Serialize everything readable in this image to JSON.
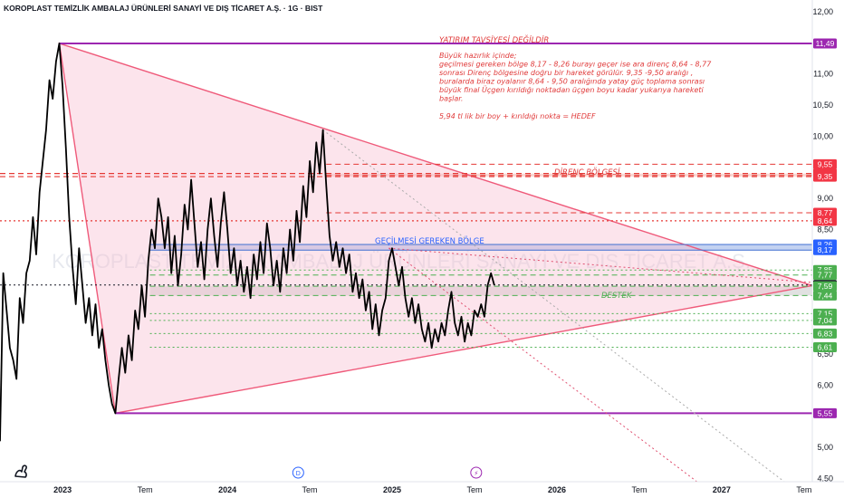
{
  "header": {
    "title": "KOROPLAST TEMİZLİK AMBALAJ ÜRÜNLERİ SANAYİ VE DIŞ TİCARET A.Ş. · 1G · BIST"
  },
  "watermark": "KOROPLAST TEMİZLİK AMBALAJ ÜRÜNLERİ SANAYİ VE DIŞ TİCARET A.Ş.",
  "annotations": {
    "disclaimer": "YATIRIM TAVSİYESİ DEĞİLDİR",
    "body_lines": [
      "Büyük hazırlık içinde;",
      "geçilmesi gereken bölge 8,17 - 8,26 burayı geçer ise ara direnç  8,64 - 8,77",
      "sonrası Direnç bölgesine doğru bir hareket görülür. 9,35 -9,50 aralığı ,",
      " buralarda biraz oyalanır 8,64 - 9,50 aralığında yatay güç toplama sonrası",
      "büyük final Üçgen kırıldığı noktadan üçgen boyu kadar yukarıya hareketi",
      "başlar."
    ],
    "target_line": "5,94 tl lik bir boy  + kırıldığı nokta = HEDEF",
    "resistance_zone": "DİRENÇ BÖLGESİ",
    "breakout_zone": "GEÇİLMESİ GEREKEN BÖLGE",
    "support_zone": "DESTEK"
  },
  "axis_badges": {
    "d": "D",
    "bolt": "⚡"
  },
  "chart_data": {
    "type": "line",
    "title": "KOROPLAST TEMİZLİK AMBALAJ ÜRÜNLERİ SANAYİ VE DIŞ TİCARET A.Ş. · 1G · BIST",
    "y_axis": {
      "min": 4.45,
      "max": 12.1,
      "ticks": [
        {
          "v": 12.0,
          "label": "12,00"
        },
        {
          "v": 11.0,
          "label": "11,00"
        },
        {
          "v": 10.5,
          "label": "10,50"
        },
        {
          "v": 10.0,
          "label": "10,00"
        },
        {
          "v": 9.0,
          "label": "9,00"
        },
        {
          "v": 8.5,
          "label": "8,50"
        },
        {
          "v": 6.5,
          "label": "6,50"
        },
        {
          "v": 6.0,
          "label": "6,00"
        },
        {
          "v": 5.0,
          "label": "5,00"
        },
        {
          "v": 4.5,
          "label": "4,50"
        }
      ]
    },
    "x_axis": {
      "min": 2022.62,
      "max": 2027.55,
      "ticks": [
        {
          "v": 2023.0,
          "label": "2023",
          "bold": true
        },
        {
          "v": 2023.5,
          "label": "Tem",
          "bold": false
        },
        {
          "v": 2024.0,
          "label": "2024",
          "bold": true
        },
        {
          "v": 2024.5,
          "label": "Tem",
          "bold": false
        },
        {
          "v": 2025.0,
          "label": "2025",
          "bold": true
        },
        {
          "v": 2025.5,
          "label": "Tem",
          "bold": false
        },
        {
          "v": 2026.0,
          "label": "2026",
          "bold": true
        },
        {
          "v": 2026.5,
          "label": "Tem",
          "bold": false
        },
        {
          "v": 2027.0,
          "label": "2027",
          "bold": true
        },
        {
          "v": 2027.5,
          "label": "Tem",
          "bold": false
        }
      ]
    },
    "badge_positions": {
      "d": 2024.43,
      "bolt": 2025.51
    },
    "series": [
      {
        "color": "#000000",
        "points": [
          [
            2022.62,
            5.1
          ],
          [
            2022.64,
            7.8
          ],
          [
            2022.66,
            7.2
          ],
          [
            2022.68,
            6.6
          ],
          [
            2022.7,
            6.4
          ],
          [
            2022.72,
            6.1
          ],
          [
            2022.74,
            7.4
          ],
          [
            2022.76,
            7.0
          ],
          [
            2022.78,
            7.8
          ],
          [
            2022.8,
            8.0
          ],
          [
            2022.82,
            8.7
          ],
          [
            2022.84,
            8.1
          ],
          [
            2022.86,
            9.1
          ],
          [
            2022.88,
            9.6
          ],
          [
            2022.9,
            10.1
          ],
          [
            2022.92,
            10.9
          ],
          [
            2022.94,
            10.6
          ],
          [
            2022.96,
            11.2
          ],
          [
            2022.98,
            11.49
          ],
          [
            2023.0,
            10.8
          ],
          [
            2023.02,
            9.8
          ],
          [
            2023.04,
            8.7
          ],
          [
            2023.06,
            7.9
          ],
          [
            2023.08,
            7.3
          ],
          [
            2023.1,
            8.2
          ],
          [
            2023.12,
            7.6
          ],
          [
            2023.14,
            7.0
          ],
          [
            2023.16,
            7.4
          ],
          [
            2023.18,
            6.8
          ],
          [
            2023.2,
            7.3
          ],
          [
            2023.22,
            6.6
          ],
          [
            2023.24,
            6.9
          ],
          [
            2023.26,
            6.4
          ],
          [
            2023.28,
            6.0
          ],
          [
            2023.3,
            5.7
          ],
          [
            2023.32,
            5.55
          ],
          [
            2023.34,
            6.1
          ],
          [
            2023.36,
            6.6
          ],
          [
            2023.38,
            6.2
          ],
          [
            2023.4,
            6.8
          ],
          [
            2023.42,
            6.4
          ],
          [
            2023.44,
            7.2
          ],
          [
            2023.46,
            6.9
          ],
          [
            2023.48,
            7.6
          ],
          [
            2023.5,
            7.1
          ],
          [
            2023.52,
            8.0
          ],
          [
            2023.54,
            8.5
          ],
          [
            2023.56,
            8.2
          ],
          [
            2023.58,
            9.0
          ],
          [
            2023.6,
            8.7
          ],
          [
            2023.62,
            8.2
          ],
          [
            2023.64,
            8.7
          ],
          [
            2023.66,
            7.8
          ],
          [
            2023.68,
            8.4
          ],
          [
            2023.7,
            7.6
          ],
          [
            2023.72,
            8.1
          ],
          [
            2023.74,
            8.9
          ],
          [
            2023.76,
            8.5
          ],
          [
            2023.78,
            9.3
          ],
          [
            2023.8,
            8.6
          ],
          [
            2023.82,
            7.9
          ],
          [
            2023.84,
            8.3
          ],
          [
            2023.86,
            7.7
          ],
          [
            2023.88,
            8.5
          ],
          [
            2023.9,
            9.0
          ],
          [
            2023.92,
            8.4
          ],
          [
            2023.94,
            7.9
          ],
          [
            2023.96,
            8.6
          ],
          [
            2023.98,
            9.1
          ],
          [
            2024.0,
            8.5
          ],
          [
            2024.02,
            7.8
          ],
          [
            2024.04,
            8.2
          ],
          [
            2024.06,
            7.6
          ],
          [
            2024.08,
            8.0
          ],
          [
            2024.1,
            7.5
          ],
          [
            2024.12,
            7.9
          ],
          [
            2024.14,
            7.4
          ],
          [
            2024.16,
            8.1
          ],
          [
            2024.18,
            7.7
          ],
          [
            2024.2,
            8.3
          ],
          [
            2024.22,
            7.8
          ],
          [
            2024.24,
            8.6
          ],
          [
            2024.26,
            8.2
          ],
          [
            2024.28,
            7.6
          ],
          [
            2024.3,
            8.0
          ],
          [
            2024.32,
            7.5
          ],
          [
            2024.34,
            8.2
          ],
          [
            2024.36,
            7.8
          ],
          [
            2024.38,
            8.5
          ],
          [
            2024.4,
            8.0
          ],
          [
            2024.42,
            8.8
          ],
          [
            2024.44,
            8.3
          ],
          [
            2024.46,
            9.2
          ],
          [
            2024.48,
            8.7
          ],
          [
            2024.5,
            9.6
          ],
          [
            2024.52,
            9.1
          ],
          [
            2024.54,
            9.9
          ],
          [
            2024.56,
            9.4
          ],
          [
            2024.58,
            10.1
          ],
          [
            2024.6,
            9.2
          ],
          [
            2024.62,
            8.4
          ],
          [
            2024.64,
            8.0
          ],
          [
            2024.66,
            8.3
          ],
          [
            2024.68,
            7.9
          ],
          [
            2024.7,
            8.2
          ],
          [
            2024.72,
            7.8
          ],
          [
            2024.74,
            8.1
          ],
          [
            2024.76,
            7.5
          ],
          [
            2024.78,
            7.8
          ],
          [
            2024.8,
            7.4
          ],
          [
            2024.82,
            7.7
          ],
          [
            2024.84,
            7.2
          ],
          [
            2024.86,
            7.5
          ],
          [
            2024.88,
            6.9
          ],
          [
            2024.9,
            7.3
          ],
          [
            2024.92,
            6.8
          ],
          [
            2024.94,
            7.2
          ],
          [
            2024.96,
            7.4
          ],
          [
            2024.98,
            8.0
          ],
          [
            2025.0,
            8.2
          ],
          [
            2025.02,
            7.9
          ],
          [
            2025.04,
            7.6
          ],
          [
            2025.06,
            7.9
          ],
          [
            2025.08,
            7.4
          ],
          [
            2025.1,
            7.1
          ],
          [
            2025.12,
            7.4
          ],
          [
            2025.14,
            7.0
          ],
          [
            2025.16,
            7.3
          ],
          [
            2025.18,
            6.9
          ],
          [
            2025.2,
            6.7
          ],
          [
            2025.22,
            7.0
          ],
          [
            2025.24,
            6.6
          ],
          [
            2025.26,
            6.9
          ],
          [
            2025.28,
            6.7
          ],
          [
            2025.3,
            7.0
          ],
          [
            2025.32,
            6.8
          ],
          [
            2025.34,
            7.2
          ],
          [
            2025.36,
            7.5
          ],
          [
            2025.38,
            7.0
          ],
          [
            2025.4,
            6.8
          ],
          [
            2025.42,
            7.1
          ],
          [
            2025.44,
            6.7
          ],
          [
            2025.46,
            7.0
          ],
          [
            2025.48,
            6.8
          ],
          [
            2025.5,
            7.2
          ],
          [
            2025.52,
            7.1
          ],
          [
            2025.54,
            7.3
          ],
          [
            2025.56,
            7.1
          ],
          [
            2025.58,
            7.61
          ],
          [
            2025.6,
            7.8
          ],
          [
            2025.62,
            7.61
          ]
        ]
      }
    ],
    "horizontal_lines": [
      {
        "y": 11.49,
        "color": "#9c27b0",
        "style": "solid",
        "width": 2,
        "from": 2022.98
      },
      {
        "y": 5.55,
        "color": "#9c27b0",
        "style": "solid",
        "width": 2,
        "from": 2023.32
      },
      {
        "y": 9.4,
        "color": "#e53935",
        "style": "dashed",
        "width": 1.2,
        "from": 2022.62
      },
      {
        "y": 9.35,
        "color": "#e53935",
        "style": "dashed",
        "width": 1.2,
        "from": 2022.62
      },
      {
        "y": 9.37,
        "color": "#e53935",
        "style": "dashed",
        "width": 1,
        "from": 2024.6
      },
      {
        "y": 9.55,
        "color": "#e53935",
        "style": "dashed",
        "width": 1,
        "from": 2024.6
      },
      {
        "y": 8.77,
        "color": "#e53935",
        "style": "dashed",
        "width": 1,
        "from": 2024.6
      },
      {
        "y": 8.64,
        "color": "#e53935",
        "style": "dotted",
        "width": 1.2,
        "from": 2022.62
      },
      {
        "y": 8.26,
        "color": "#3f6fd1",
        "style": "solid",
        "width": 1,
        "from": 2023.53
      },
      {
        "y": 8.17,
        "color": "#3f6fd1",
        "style": "solid",
        "width": 1,
        "from": 2023.53
      },
      {
        "y": 7.85,
        "color": "#4caf50",
        "style": "dotted",
        "width": 1,
        "from": 2023.53
      },
      {
        "y": 7.77,
        "color": "#4caf50",
        "style": "dashed",
        "width": 1,
        "from": 2023.53
      },
      {
        "y": 7.59,
        "color": "#4caf50",
        "style": "dashed",
        "width": 1,
        "from": 2023.53
      },
      {
        "y": 7.44,
        "color": "#4caf50",
        "style": "dashed",
        "width": 1,
        "from": 2023.53
      },
      {
        "y": 7.15,
        "color": "#4caf50",
        "style": "dotted",
        "width": 1,
        "from": 2023.53
      },
      {
        "y": 7.04,
        "color": "#4caf50",
        "style": "dotted",
        "width": 1,
        "from": 2023.53
      },
      {
        "y": 6.83,
        "color": "#4caf50",
        "style": "dotted",
        "width": 1,
        "from": 2023.53
      },
      {
        "y": 6.61,
        "color": "#4caf50",
        "style": "dotted",
        "width": 1,
        "from": 2023.53
      },
      {
        "y": 7.61,
        "color": "#131722",
        "style": "dotted",
        "width": 1,
        "from": 2022.62
      }
    ],
    "zones": [
      {
        "y1": 9.35,
        "y2": 9.4,
        "x1": 2024.6,
        "color": "#f28b82",
        "opacity": 0.35
      },
      {
        "y1": 8.17,
        "y2": 8.26,
        "x1": 2023.53,
        "color": "#7b9ce0",
        "opacity": 0.45
      },
      {
        "y1": 7.44,
        "y2": 7.59,
        "x1": 2023.53,
        "color": "#c9c9c9",
        "opacity": 0.55
      }
    ],
    "triangle": {
      "points": [
        [
          2022.98,
          11.49
        ],
        [
          2027.55,
          7.6
        ],
        [
          2023.32,
          5.55
        ]
      ],
      "fill": "#f8bbd0",
      "fill_opacity": 0.4,
      "stroke": "#ef5a7a"
    },
    "trend_lines": [
      {
        "p1": [
          2024.58,
          10.1
        ],
        "p2": [
          2027.38,
          4.45
        ],
        "color": "#aaaaaa",
        "style": "dotted"
      },
      {
        "p1": [
          2024.98,
          8.2
        ],
        "p2": [
          2026.85,
          4.45
        ],
        "color": "#e05070",
        "style": "dotted"
      },
      {
        "p1": [
          2024.98,
          8.2
        ],
        "p2": [
          2027.55,
          7.65
        ],
        "color": "#e05070",
        "style": "dotted"
      }
    ],
    "price_labels": [
      {
        "v": 11.49,
        "label": "11,49",
        "color": "#9c27b0"
      },
      {
        "v": 9.55,
        "label": "9,55",
        "color": "#f23645"
      },
      {
        "v": 9.4,
        "label": "9,40",
        "color": "#f23645"
      },
      {
        "v": 9.37,
        "label": "9,37",
        "color": "#f23645"
      },
      {
        "v": 9.35,
        "label": "9,35",
        "color": "#f23645"
      },
      {
        "v": 8.77,
        "label": "8,77",
        "color": "#f23645"
      },
      {
        "v": 8.64,
        "label": "8,64",
        "color": "#f23645"
      },
      {
        "v": 8.26,
        "label": "8,26",
        "color": "#2962ff"
      },
      {
        "v": 8.17,
        "label": "8,17",
        "color": "#2962ff"
      },
      {
        "v": 7.85,
        "label": "7,85",
        "color": "#4caf50"
      },
      {
        "v": 7.77,
        "label": "7,77",
        "color": "#4caf50"
      },
      {
        "v": 7.61,
        "label": "7,61",
        "color": "#131722"
      },
      {
        "v": 7.59,
        "label": "7,59",
        "color": "#4caf50"
      },
      {
        "v": 7.44,
        "label": "7,44",
        "color": "#4caf50"
      },
      {
        "v": 7.15,
        "label": "7,15",
        "color": "#4caf50"
      },
      {
        "v": 7.04,
        "label": "7,04",
        "color": "#4caf50"
      },
      {
        "v": 6.83,
        "label": "6,83",
        "color": "#4caf50"
      },
      {
        "v": 6.61,
        "label": "6,61",
        "color": "#4caf50"
      },
      {
        "v": 5.55,
        "label": "5,55",
        "color": "#9c27b0"
      }
    ]
  }
}
